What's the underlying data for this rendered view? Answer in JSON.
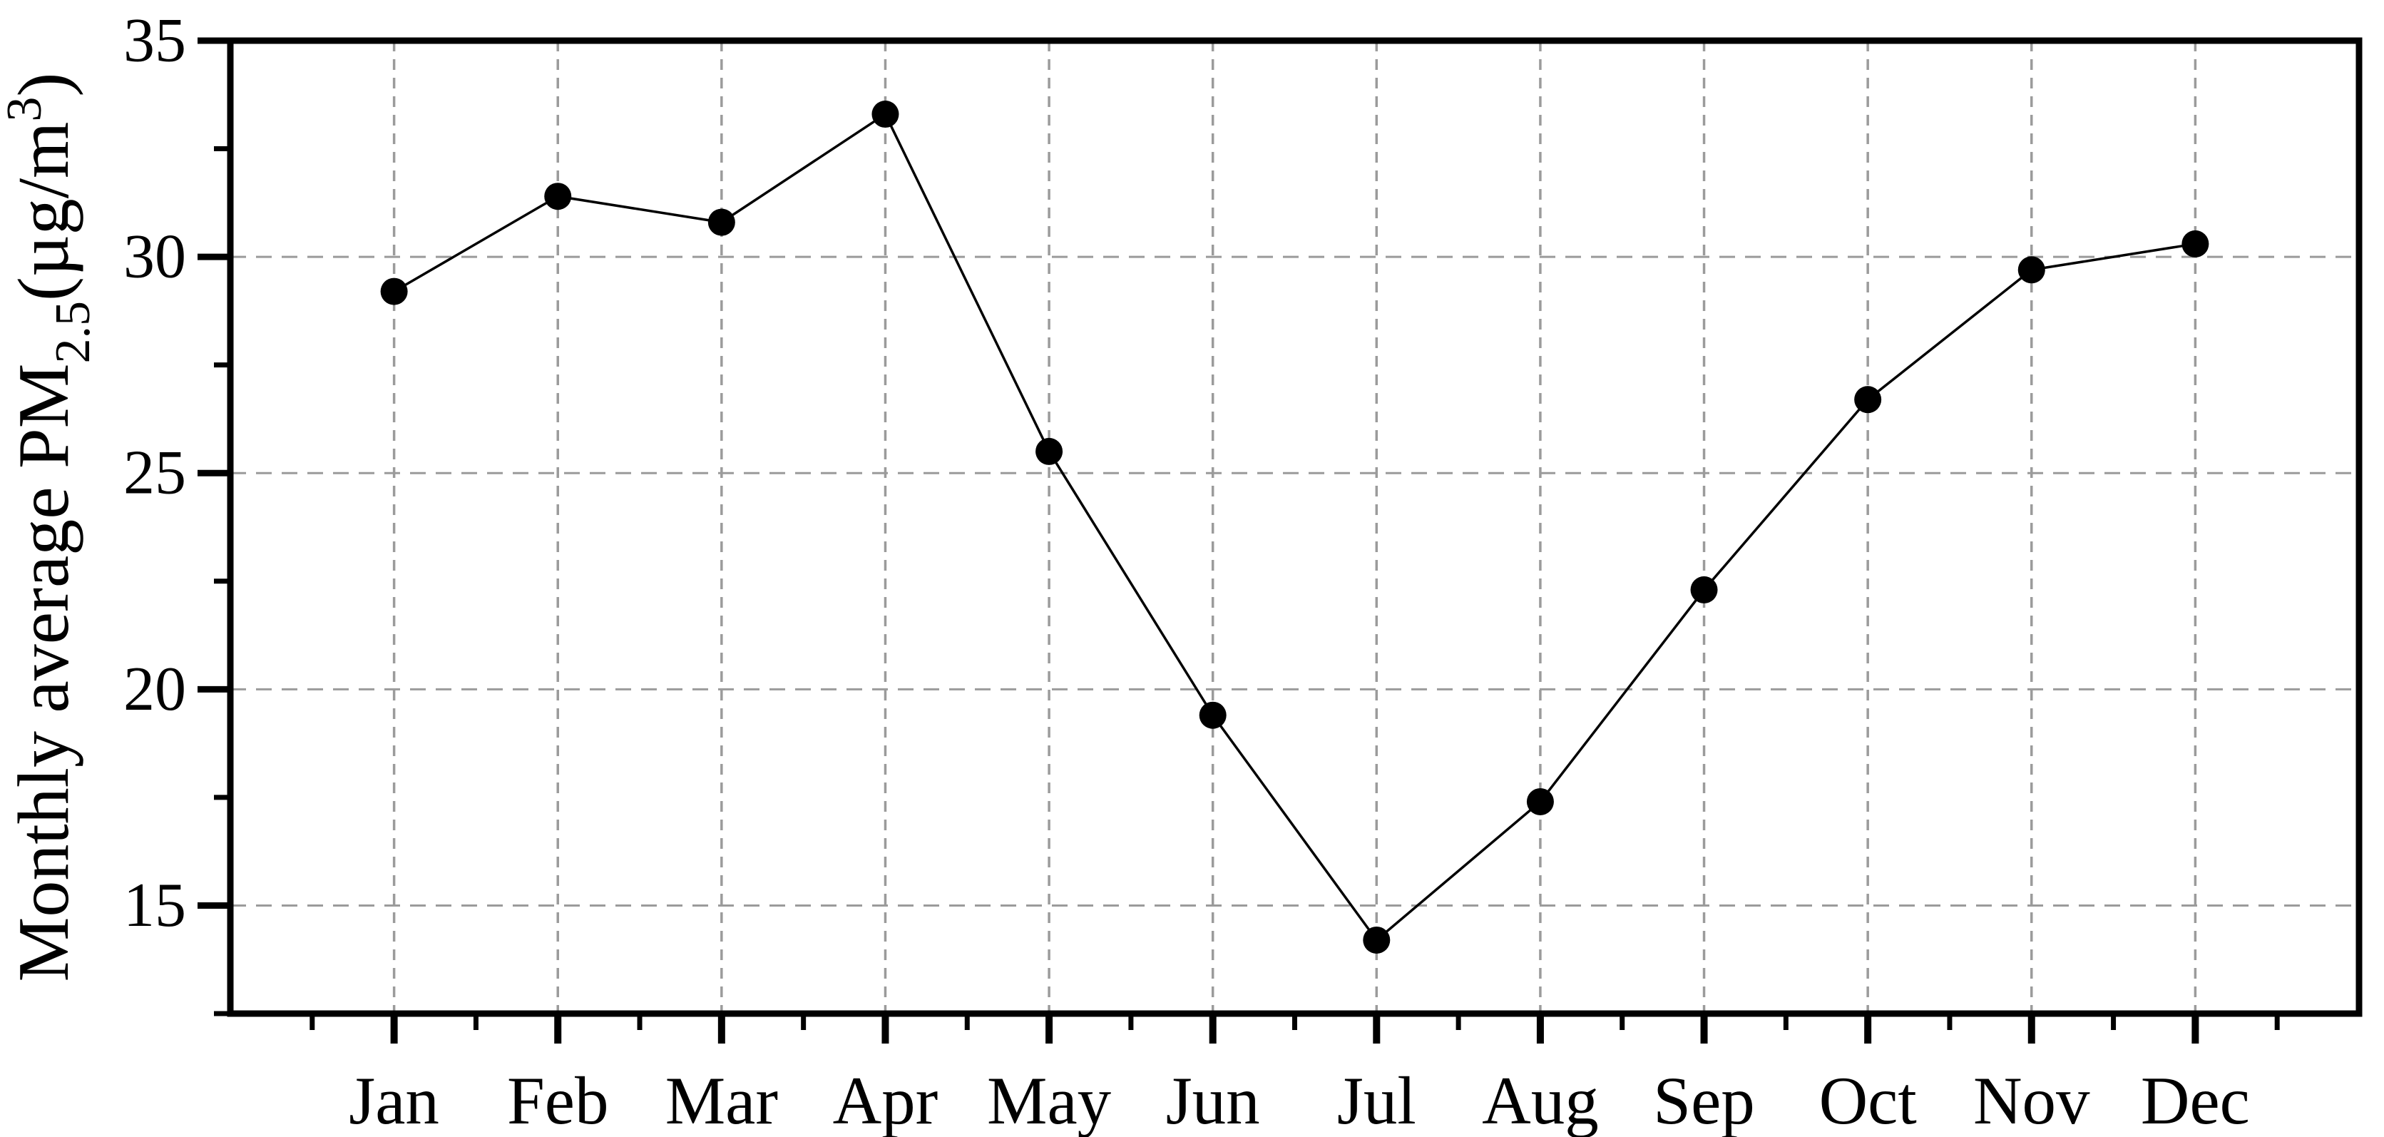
{
  "figure": {
    "kind": "line-chart-figure",
    "background": "#ffffff"
  },
  "chart_data": {
    "type": "line",
    "title": "",
    "categories": [
      "Jan",
      "Feb",
      "Mar",
      "Apr",
      "May",
      "Jun",
      "Jul",
      "Aug",
      "Sep",
      "Oct",
      "Nov",
      "Dec"
    ],
    "series": [
      {
        "name": "Monthly average PM2.5",
        "values": [
          29.2,
          31.4,
          30.8,
          33.3,
          25.5,
          19.4,
          14.2,
          17.4,
          22.3,
          26.7,
          29.7,
          30.3
        ]
      }
    ],
    "xlabel": "",
    "ylabel": "Monthly average PM2.5(µg/m³)",
    "ylabel_parts": [
      {
        "text": "Monthly average PM",
        "style": "normal"
      },
      {
        "text": "2.5",
        "style": "sub"
      },
      {
        "text": "(µg/m",
        "style": "normal"
      },
      {
        "text": "3",
        "style": "sup"
      },
      {
        "text": ")",
        "style": "normal"
      }
    ],
    "ylim": [
      12.5,
      35
    ],
    "xlim_months": [
      0,
      13
    ],
    "yticks_major": [
      15,
      20,
      25,
      30,
      35
    ],
    "yticks_minor": [
      12.5,
      17.5,
      22.5,
      27.5,
      32.5
    ],
    "xticks_minor_halfstep": true,
    "grid": true,
    "grid_horizontal_at": [
      15,
      20,
      25,
      30
    ],
    "legend_position": "none",
    "marker": "circle-filled",
    "colors": {
      "line": "#000000",
      "marker": "#000000",
      "axis": "#000000",
      "gridline": "#9b9b9b",
      "text": "#000000",
      "background": "#ffffff"
    }
  }
}
